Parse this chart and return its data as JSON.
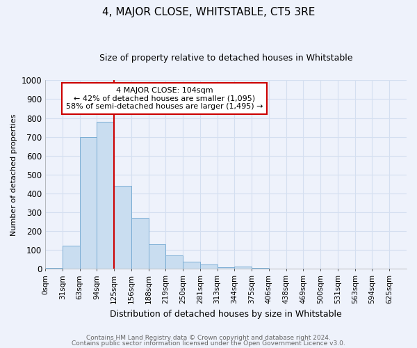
{
  "title": "4, MAJOR CLOSE, WHITSTABLE, CT5 3RE",
  "subtitle": "Size of property relative to detached houses in Whitstable",
  "xlabel": "Distribution of detached houses by size in Whitstable",
  "ylabel": "Number of detached properties",
  "footnote1": "Contains HM Land Registry data © Crown copyright and database right 2024.",
  "footnote2": "Contains public sector information licensed under the Open Government Licence v3.0.",
  "bar_labels": [
    "0sqm",
    "31sqm",
    "63sqm",
    "94sqm",
    "125sqm",
    "156sqm",
    "188sqm",
    "219sqm",
    "250sqm",
    "281sqm",
    "313sqm",
    "344sqm",
    "375sqm",
    "406sqm",
    "438sqm",
    "469sqm",
    "500sqm",
    "531sqm",
    "563sqm",
    "594sqm",
    "625sqm"
  ],
  "bar_values": [
    5,
    125,
    700,
    780,
    440,
    270,
    130,
    70,
    40,
    25,
    10,
    12,
    5,
    0,
    0,
    0,
    0,
    0,
    0,
    0,
    0
  ],
  "bar_color": "#c9ddf0",
  "bar_edge_color": "#7aadd4",
  "grid_color": "#d4dff0",
  "red_line_x": 4,
  "red_line_color": "#cc0000",
  "annotation_text": "4 MAJOR CLOSE: 104sqm\n← 42% of detached houses are smaller (1,095)\n58% of semi-detached houses are larger (1,495) →",
  "annotation_box_facecolor": "#ffffff",
  "annotation_box_edgecolor": "#cc0000",
  "ylim": [
    0,
    1000
  ],
  "yticks": [
    0,
    100,
    200,
    300,
    400,
    500,
    600,
    700,
    800,
    900,
    1000
  ],
  "background_color": "#eef2fb",
  "title_fontsize": 11,
  "subtitle_fontsize": 9,
  "ylabel_fontsize": 8,
  "xlabel_fontsize": 9,
  "footnote_fontsize": 6.5,
  "footnote_color": "#666666"
}
